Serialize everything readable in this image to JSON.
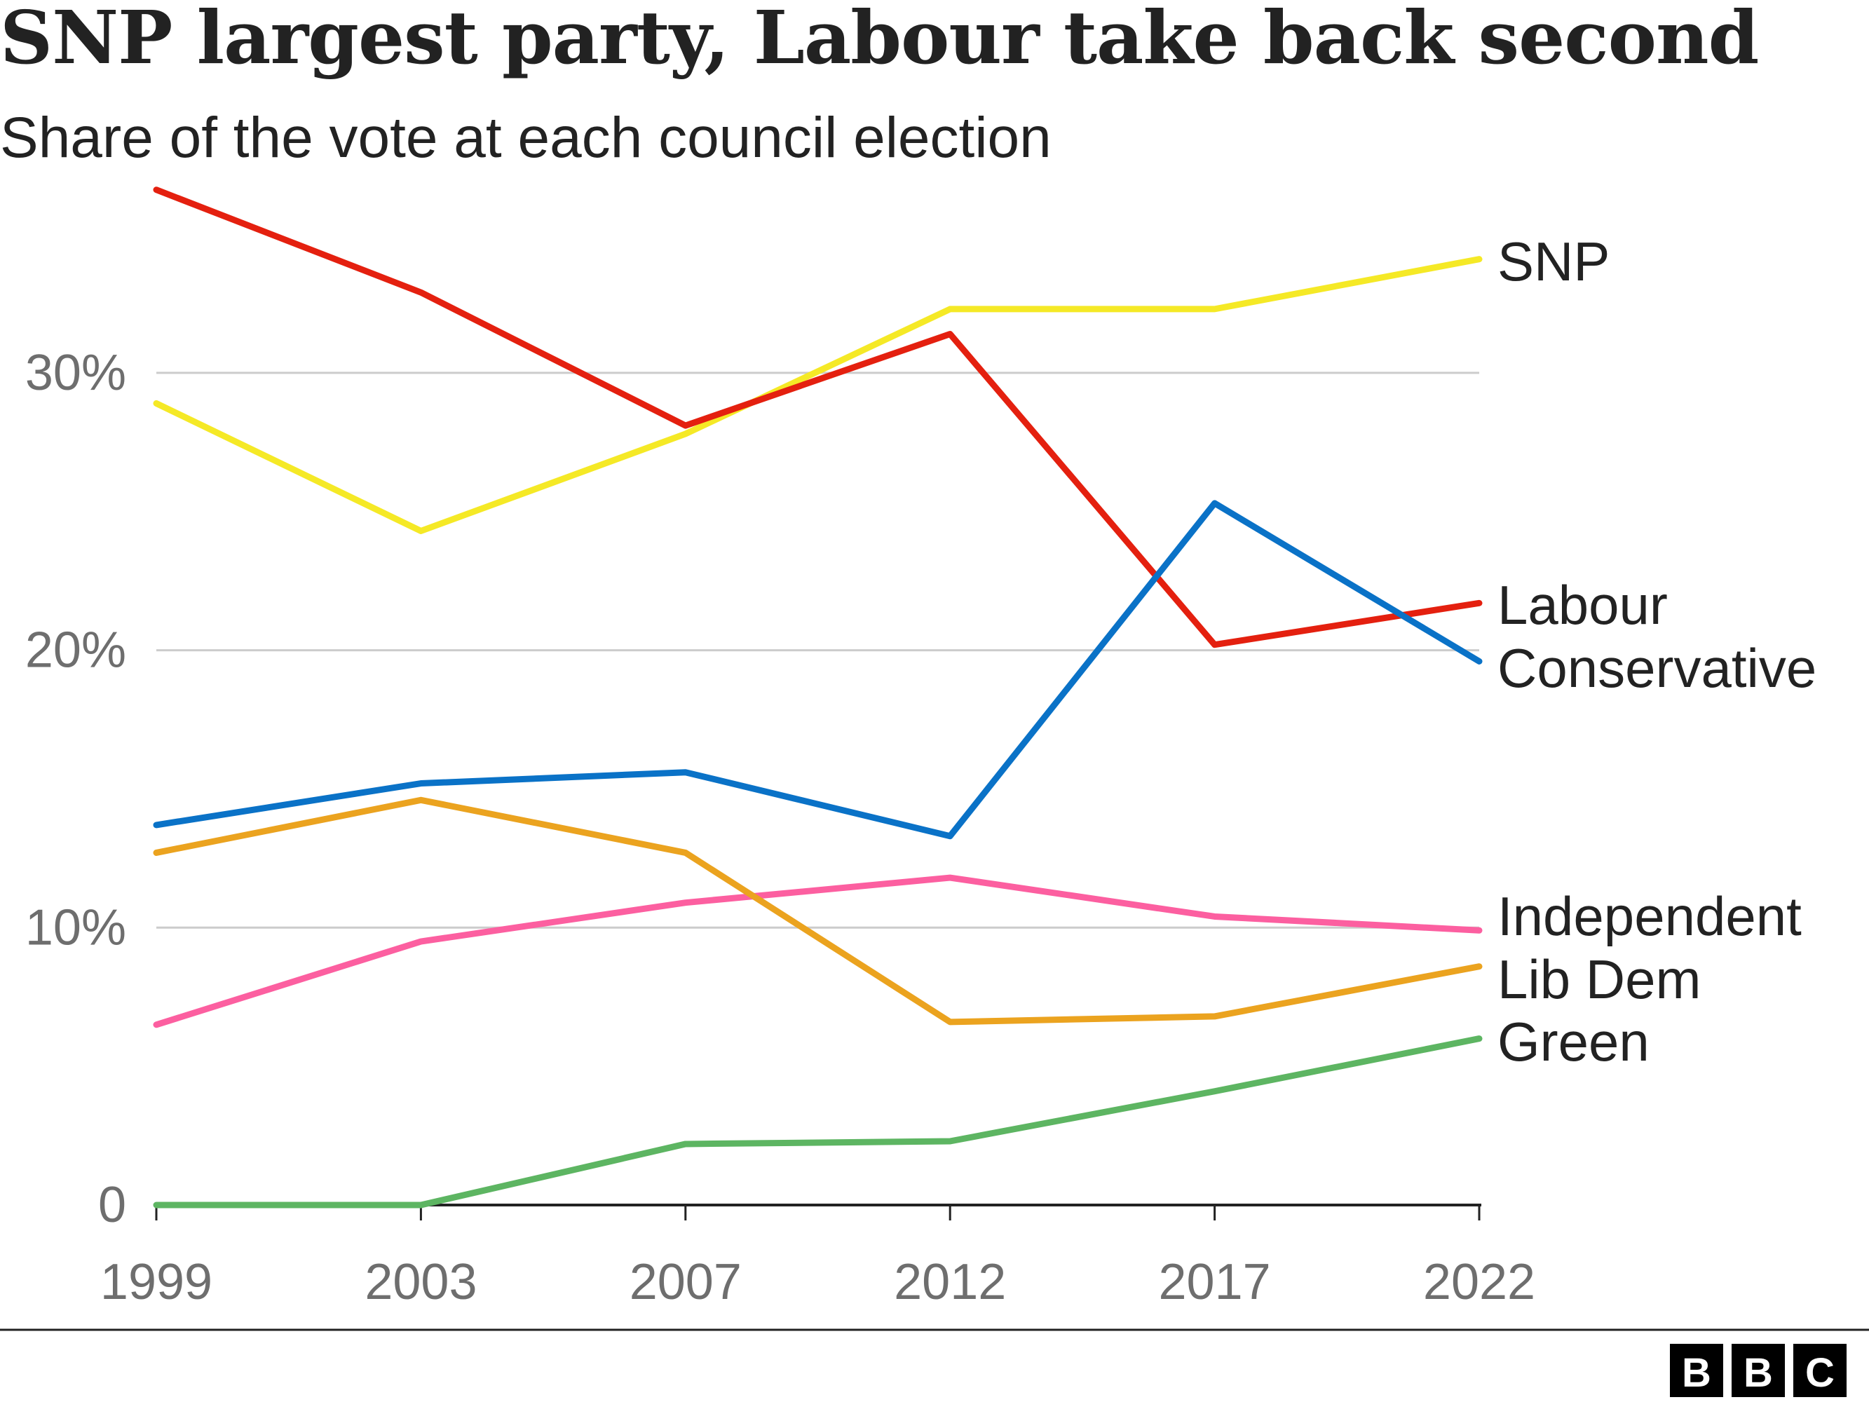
{
  "chart_data": {
    "type": "line",
    "title": "SNP largest party, Labour take back second",
    "subtitle": "Share of the vote at each council election",
    "categories": [
      "1999",
      "2003",
      "2007",
      "2012",
      "2017",
      "2022"
    ],
    "ylim": [
      0,
      37
    ],
    "yticks": [
      {
        "value": 0,
        "label": "0"
      },
      {
        "value": 10,
        "label": "10%"
      },
      {
        "value": 20,
        "label": "20%"
      },
      {
        "value": 30,
        "label": "30%"
      }
    ],
    "grid": true,
    "legend": "direct labels at line ends",
    "series": [
      {
        "name": "SNP",
        "color": "#f5e926",
        "values": [
          28.9,
          24.3,
          27.8,
          32.3,
          32.3,
          34.1
        ]
      },
      {
        "name": "Labour",
        "color": "#e4200f",
        "values": [
          36.6,
          32.9,
          28.1,
          31.4,
          20.2,
          21.7
        ]
      },
      {
        "name": "Conservative",
        "color": "#0a72c7",
        "values": [
          13.7,
          15.2,
          15.6,
          13.3,
          25.3,
          19.6
        ]
      },
      {
        "name": "Independent",
        "color": "#fc5fa0",
        "values": [
          6.5,
          9.5,
          10.9,
          11.8,
          10.4,
          9.9
        ]
      },
      {
        "name": "Lib Dem",
        "color": "#eba31f",
        "values": [
          12.7,
          14.6,
          12.7,
          6.6,
          6.8,
          8.6
        ]
      },
      {
        "name": "Green",
        "color": "#5db562",
        "values": [
          0,
          0,
          2.2,
          2.3,
          4.1,
          6.0
        ]
      }
    ]
  },
  "footer": {
    "logo": "BBC",
    "logo_letters": [
      "B",
      "B",
      "C"
    ]
  }
}
